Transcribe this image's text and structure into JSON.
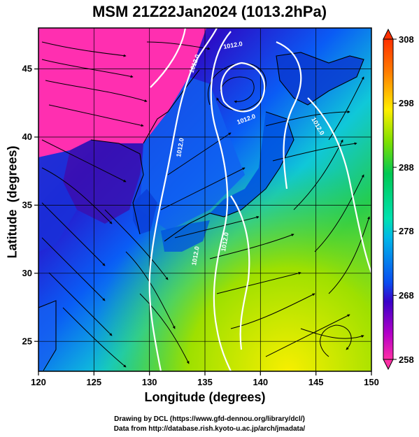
{
  "title": "MSM 21Z22Jan2024 (1013.2hPa)",
  "map": {
    "xlabel": "Longitude (degrees)",
    "ylabel": "Latitude  (degrees)",
    "lon_range": [
      120,
      150
    ],
    "lat_range": [
      22.4,
      47.6
    ],
    "lon_ticks": [
      120,
      125,
      130,
      135,
      140,
      145,
      150
    ],
    "lat_ticks": [
      25,
      30,
      35,
      40,
      45
    ],
    "grid": true
  },
  "colorbar": {
    "range": [
      258,
      308
    ],
    "ticks": [
      258,
      268,
      278,
      288,
      298,
      308
    ],
    "colors": [
      "#ff2fa6",
      "#b400c8",
      "#3a00c8",
      "#0a4cf0",
      "#00b7e8",
      "#00e2b0",
      "#00c853",
      "#7ee000",
      "#ffee00",
      "#ff7a00",
      "#ff3000"
    ]
  },
  "contour_labels": [
    "1012.0",
    "1012.0",
    "1012.0",
    "1012.0",
    "1012.0",
    "1012.0",
    "1012.0"
  ],
  "credits": {
    "line1": "Drawing by DCL (https://www.gfd-dennou.org/library/dcl/)",
    "line2": "Data from http://database.rish.kyoto-u.ac.jp/arch/jmadata/"
  }
}
